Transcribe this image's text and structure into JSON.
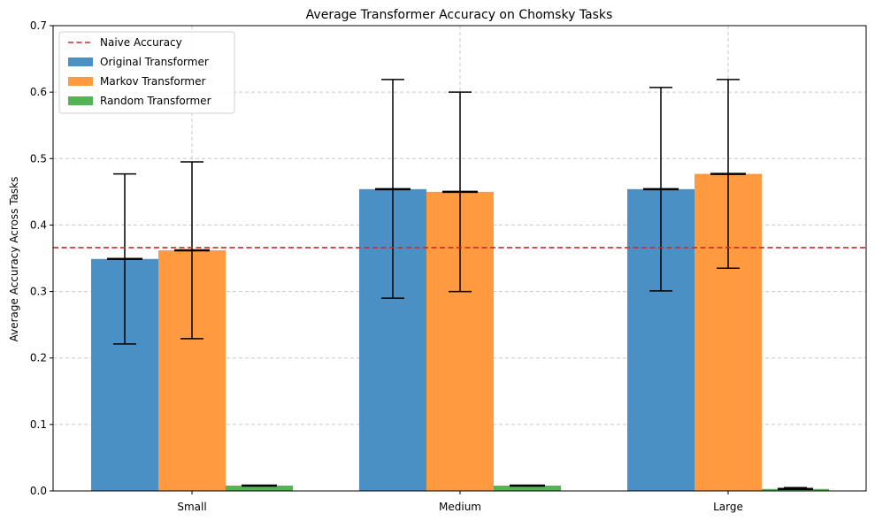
{
  "chart_data": {
    "type": "bar",
    "title": "Average Transformer Accuracy on Chomsky Tasks",
    "xlabel": "",
    "ylabel": "Average Accuracy Across Tasks",
    "categories": [
      "Small",
      "Medium",
      "Large"
    ],
    "ylim": [
      0,
      0.7
    ],
    "yticks": [
      "0.0",
      "0.1",
      "0.2",
      "0.3",
      "0.4",
      "0.5",
      "0.6",
      "0.7"
    ],
    "grid": true,
    "legend_position": "top-left",
    "series": [
      {
        "name": "Original Transformer",
        "color": "#4a90c4",
        "values": [
          0.349,
          0.454,
          0.454
        ],
        "err_low": [
          0.221,
          0.29,
          0.301
        ],
        "err_high": [
          0.477,
          0.619,
          0.607
        ]
      },
      {
        "name": "Markov Transformer",
        "color": "#ff9a40",
        "values": [
          0.362,
          0.45,
          0.477
        ],
        "err_low": [
          0.229,
          0.3,
          0.335
        ],
        "err_high": [
          0.495,
          0.6,
          0.619
        ]
      },
      {
        "name": "Random Transformer",
        "color": "#54b354",
        "values": [
          0.008,
          0.008,
          0.003
        ],
        "err_low": [
          0.008,
          0.008,
          0.003
        ],
        "err_high": [
          0.008,
          0.008,
          0.005
        ]
      }
    ],
    "reference_line": {
      "name": "Naive Accuracy",
      "value": 0.366,
      "color": "#d62728"
    }
  }
}
